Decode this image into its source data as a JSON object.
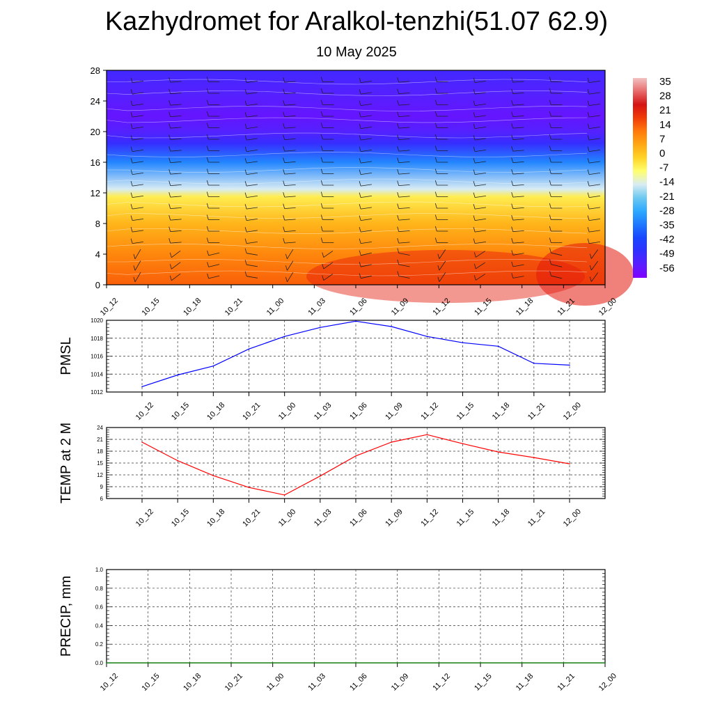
{
  "title": "Kazhydromet for Aralkol-tenzhi(51.07 62.9)",
  "subtitle": "10 May 2025",
  "time_labels": [
    "10_12",
    "10_15",
    "10_18",
    "10_21",
    "11_00",
    "11_03",
    "11_06",
    "11_09",
    "11_12",
    "11_15",
    "11_18",
    "11_21",
    "12_00"
  ],
  "chart_data": [
    {
      "type": "heatmap",
      "description_key": "temperature_cross_section",
      "x": [
        "10_12",
        "10_15",
        "10_18",
        "10_21",
        "11_00",
        "11_03",
        "11_06",
        "11_09",
        "11_12",
        "11_15",
        "11_18",
        "11_21",
        "12_00"
      ],
      "y_ticks": [
        0,
        4,
        8,
        12,
        16,
        20,
        24,
        28
      ],
      "ylim": [
        0,
        28
      ],
      "colorbar": {
        "labels": [
          "35",
          "28",
          "21",
          "14",
          "7",
          "0",
          "-7",
          "-14",
          "-21",
          "-28",
          "-35",
          "-42",
          "-49",
          "-56"
        ],
        "range": [
          -63,
          42
        ]
      },
      "temperature_profile": [
        {
          "height": 0,
          "value": 17
        },
        {
          "height": 4,
          "value": 12
        },
        {
          "height": 8,
          "value": 5
        },
        {
          "height": 11.5,
          "value": -4
        },
        {
          "height": 12.5,
          "value": -14
        },
        {
          "height": 16,
          "value": -33
        },
        {
          "height": 18.5,
          "value": -50
        },
        {
          "height": 20,
          "value": -55
        },
        {
          "height": 22,
          "value": -58
        },
        {
          "height": 25,
          "value": -55
        },
        {
          "height": 28,
          "value": -52
        }
      ],
      "wind_barbs": true
    },
    {
      "type": "line",
      "ylabel": "PMSL",
      "x": [
        "10_12",
        "10_15",
        "10_18",
        "10_21",
        "11_00",
        "11_03",
        "11_06",
        "11_09",
        "11_12",
        "11_15",
        "11_18",
        "11_21",
        "12_00"
      ],
      "series": [
        {
          "values": [
            1012.6,
            1013.9,
            1014.9,
            1016.8,
            1018.2,
            1019.2,
            1019.9,
            1019.3,
            1018.2,
            1017.5,
            1017.1,
            1015.2,
            1015.0
          ]
        }
      ],
      "ylim": [
        1012,
        1020
      ],
      "y_ticks": [
        1012,
        1014,
        1016,
        1018,
        1020
      ],
      "color": "#0000ff",
      "grid": true
    },
    {
      "type": "line",
      "ylabel": "TEMP at 2 M",
      "x": [
        "10_12",
        "10_15",
        "10_18",
        "10_21",
        "11_00",
        "11_03",
        "11_06",
        "11_09",
        "11_12",
        "11_15",
        "11_18",
        "11_21",
        "12_00"
      ],
      "series": [
        {
          "values": [
            20.3,
            15.6,
            11.8,
            8.8,
            6.9,
            11.7,
            16.8,
            20.3,
            22.2,
            19.9,
            17.8,
            16.4,
            14.8
          ]
        }
      ],
      "ylim": [
        6,
        24
      ],
      "y_ticks": [
        6,
        9,
        12,
        15,
        18,
        21,
        24
      ],
      "color": "#ff0000",
      "grid": true
    },
    {
      "type": "line",
      "ylabel": "PRECIP, mm",
      "x": [
        "10_12",
        "10_15",
        "10_18",
        "10_21",
        "11_00",
        "11_03",
        "11_06",
        "11_09",
        "11_12",
        "11_15",
        "11_18",
        "11_21",
        "12_00"
      ],
      "series": [
        {
          "values": [
            0,
            0,
            0,
            0,
            0,
            0,
            0,
            0,
            0,
            0,
            0,
            0,
            0
          ]
        }
      ],
      "ylim": [
        0,
        1
      ],
      "y_ticks": [
        "0.0",
        "0.2",
        "0.4",
        "0.6",
        "0.8",
        "1.0"
      ],
      "color": "#008000",
      "grid": true
    }
  ]
}
